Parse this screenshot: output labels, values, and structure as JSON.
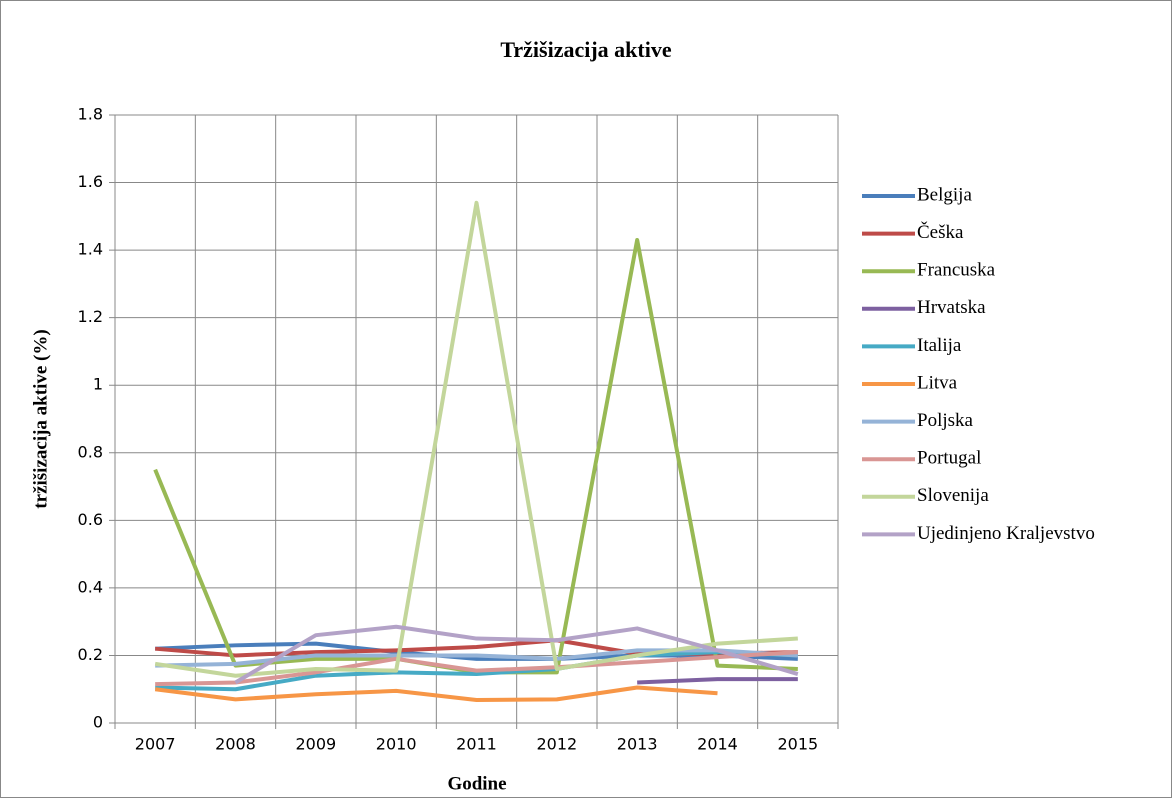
{
  "chart_data": {
    "type": "line",
    "title": "Tržišizacija aktive",
    "x_label": "Godine",
    "y_label": "tržišizacija aktive (%)",
    "categories": [
      "2007",
      "2008",
      "2009",
      "2010",
      "2011",
      "2012",
      "2013",
      "2014",
      "2015"
    ],
    "ylim": [
      0,
      1.8
    ],
    "yticks": [
      0,
      0.2,
      0.4,
      0.6,
      0.8,
      1,
      1.2,
      1.4,
      1.6,
      1.8
    ],
    "grid": true,
    "legend": "right",
    "series": [
      {
        "name": "Belgija",
        "color": "#4a7ebb",
        "values": [
          0.22,
          0.23,
          0.235,
          0.21,
          0.19,
          0.19,
          0.2,
          0.2,
          0.19
        ]
      },
      {
        "name": "Češka",
        "color": "#be4b48",
        "values": [
          0.22,
          0.2,
          0.21,
          0.215,
          0.225,
          0.245,
          0.205,
          0.205,
          0.21
        ]
      },
      {
        "name": "Francuska",
        "color": "#98b954",
        "values": [
          0.75,
          0.17,
          0.19,
          0.19,
          0.15,
          0.15,
          1.43,
          0.17,
          0.16
        ]
      },
      {
        "name": "Hrvatska",
        "color": "#7d60a0",
        "values": [
          null,
          null,
          null,
          null,
          null,
          null,
          0.12,
          0.13,
          0.13
        ]
      },
      {
        "name": "Italija",
        "color": "#46aac5",
        "values": [
          0.105,
          0.1,
          0.14,
          0.15,
          0.145,
          0.16,
          0.2,
          0.21,
          0.2
        ]
      },
      {
        "name": "Litva",
        "color": "#f79646",
        "values": [
          0.1,
          0.07,
          0.085,
          0.095,
          0.068,
          0.07,
          0.105,
          0.088,
          null
        ]
      },
      {
        "name": "Poljska",
        "color": "#95b3d7",
        "values": [
          0.17,
          0.175,
          0.2,
          0.2,
          0.2,
          0.19,
          0.215,
          0.215,
          0.2
        ]
      },
      {
        "name": "Portugal",
        "color": "#d99694",
        "values": [
          0.115,
          0.12,
          0.15,
          0.19,
          0.155,
          0.165,
          0.18,
          0.195,
          0.21
        ]
      },
      {
        "name": "Slovenija",
        "color": "#c3d69b",
        "values": [
          0.175,
          0.14,
          0.16,
          0.155,
          1.54,
          0.16,
          0.2,
          0.235,
          0.25
        ]
      },
      {
        "name": "Ujedinjeno Kraljevstvo",
        "color": "#b3a2c7",
        "values": [
          null,
          0.12,
          0.26,
          0.285,
          0.25,
          0.245,
          0.28,
          0.215,
          0.145
        ]
      }
    ]
  }
}
